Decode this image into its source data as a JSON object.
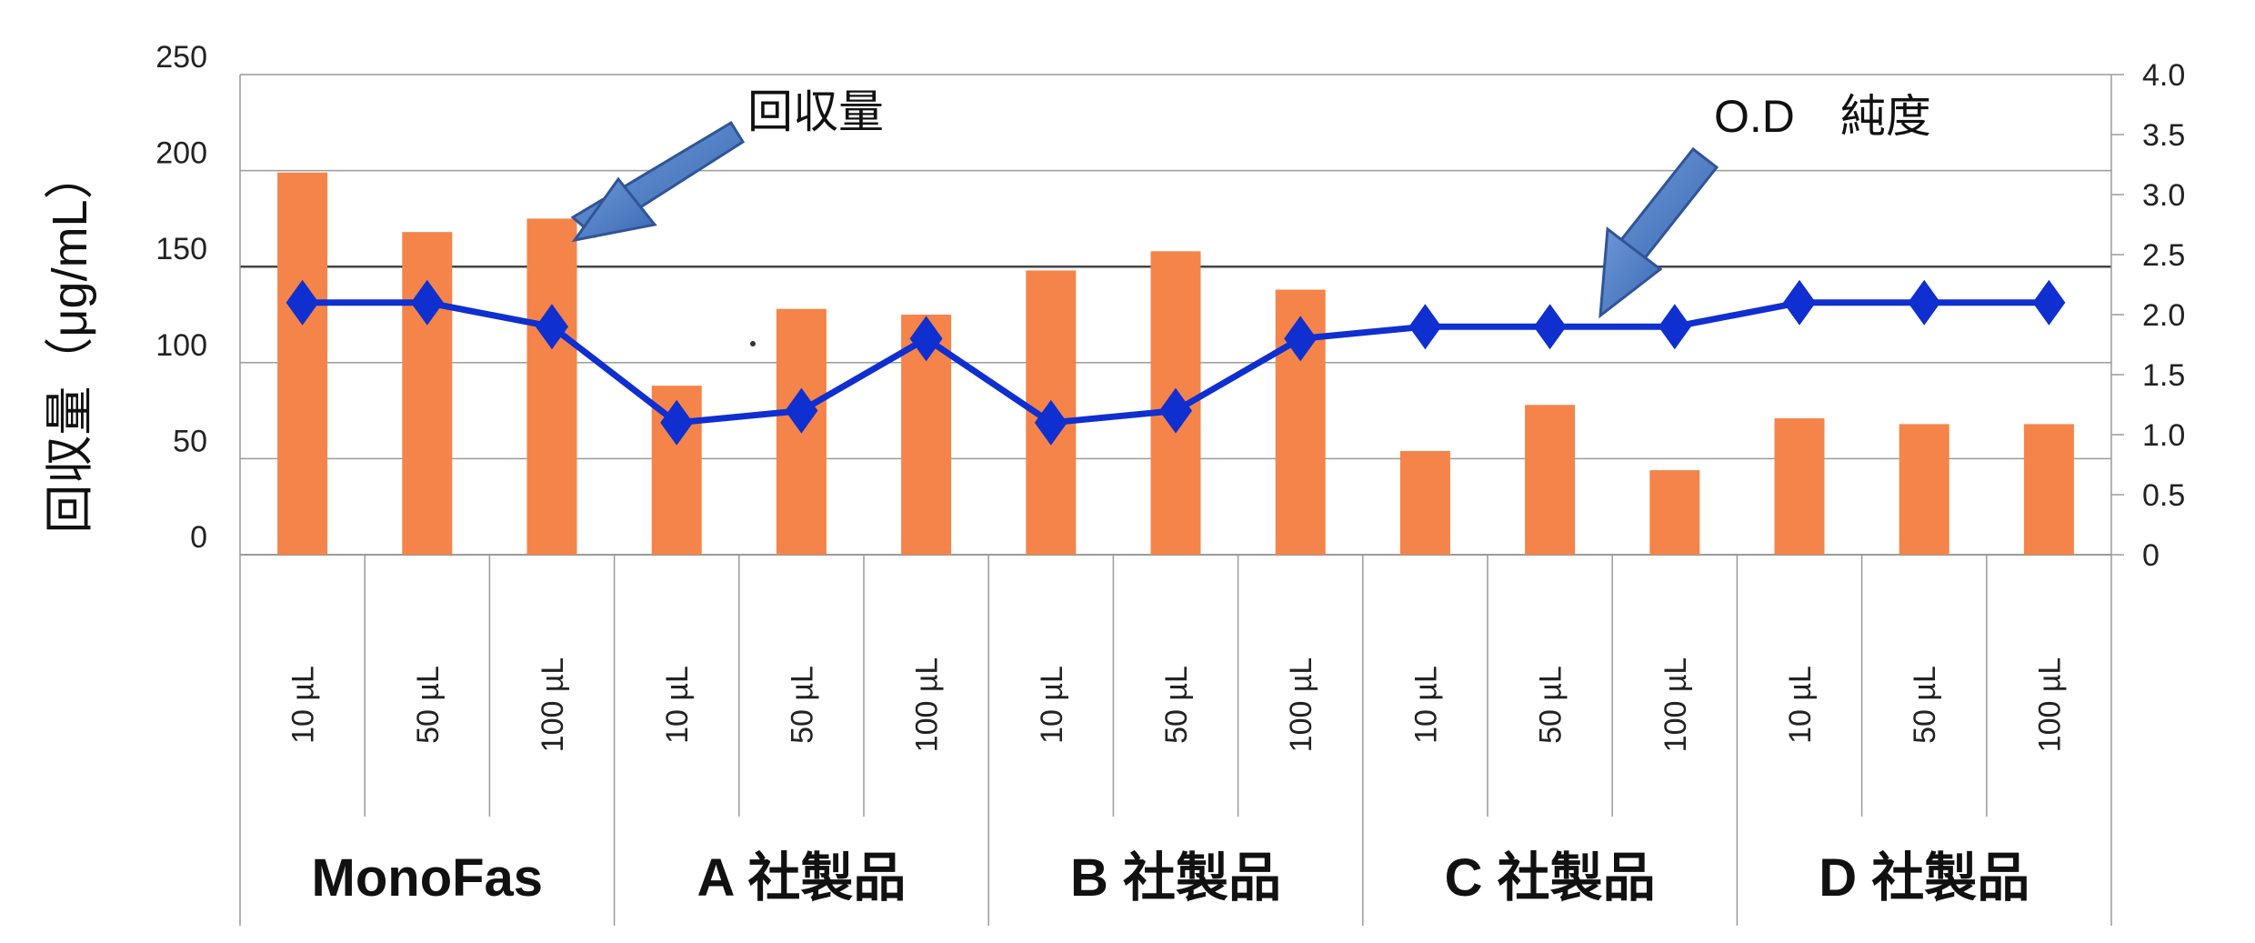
{
  "chart_data": {
    "type": "bar",
    "title": "",
    "ylabel": "回収量（μg/mL）",
    "y2label": "",
    "ylim": [
      0,
      250
    ],
    "y2lim": [
      0,
      4.0
    ],
    "y_ticks": [
      "0",
      "50",
      "100",
      "150",
      "200",
      "250"
    ],
    "y2_ticks": [
      "0",
      "0.5",
      "1.0",
      "1.5",
      "2.0",
      "2.5",
      "3.0",
      "3.5",
      "4.0"
    ],
    "categories": [
      "10 µL",
      "50 µL",
      "100 µL",
      "10 µL",
      "50 µL",
      "100 µL",
      "10 µL",
      "50 µL",
      "100 µL",
      "10 µL",
      "50 µL",
      "100 µL",
      "10 µL",
      "50 µL",
      "100 µL"
    ],
    "groups": [
      {
        "label": "MonoFas",
        "size": 3
      },
      {
        "label": "A 社製品",
        "size": 3
      },
      {
        "label": "B 社製品",
        "size": 3
      },
      {
        "label": "C 社製品",
        "size": 3
      },
      {
        "label": "D 社製品",
        "size": 3
      }
    ],
    "series": [
      {
        "name": "回収量",
        "type": "bar",
        "axis": "left",
        "color": "#f4844a",
        "values": [
          199,
          168,
          175,
          88,
          128,
          125,
          148,
          158,
          138,
          54,
          78,
          44,
          71,
          68,
          68
        ]
      },
      {
        "name": "O.D 純度",
        "type": "line",
        "axis": "right",
        "color": "#0f2fd0",
        "values": [
          2.1,
          2.1,
          1.9,
          1.1,
          1.2,
          1.8,
          1.1,
          1.2,
          1.8,
          1.9,
          1.9,
          1.9,
          2.1,
          2.1,
          2.1
        ]
      }
    ],
    "annotations": [
      {
        "text": "回収量",
        "points_to": "回収量"
      },
      {
        "text": "O.D　純度",
        "points_to": "O.D 純度"
      }
    ],
    "grid": true,
    "legend": "none"
  }
}
